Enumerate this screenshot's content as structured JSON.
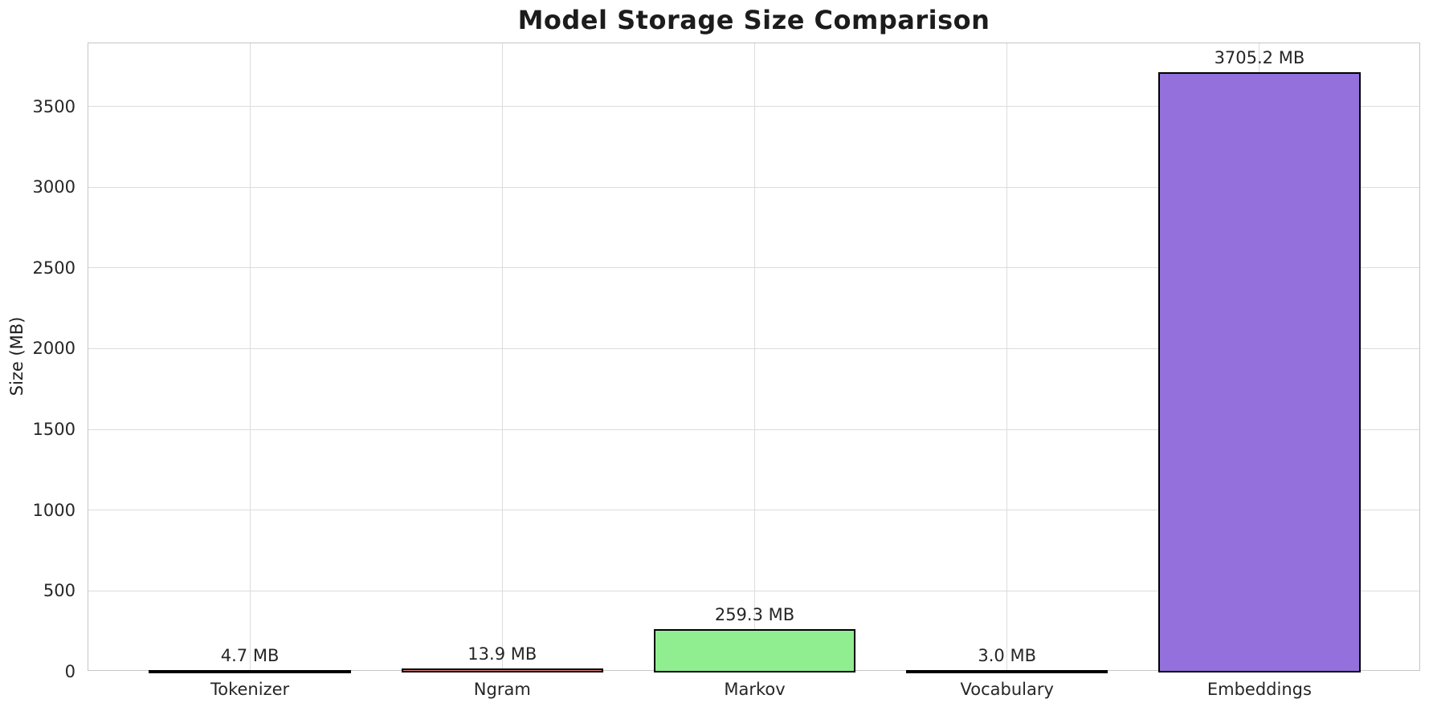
{
  "chart_data": {
    "type": "bar",
    "title": "Model Storage Size Comparison",
    "ylabel": "Size (MB)",
    "xlabel": "",
    "categories": [
      "Tokenizer",
      "Ngram",
      "Markov",
      "Vocabulary",
      "Embeddings"
    ],
    "values": [
      4.7,
      13.9,
      259.3,
      3.0,
      3705.2
    ],
    "value_labels": [
      "4.7 MB",
      "13.9 MB",
      "259.3 MB",
      "3.0 MB",
      "3705.2 MB"
    ],
    "bar_colors": [
      "#87CEEB",
      "#F08080",
      "#90EE90",
      "#FFD700",
      "#9370DB"
    ],
    "bar_edge_color": "#000000",
    "yticks": [
      0,
      500,
      1000,
      1500,
      2000,
      2500,
      3000,
      3500
    ],
    "ylim": [
      0,
      3890
    ],
    "xlim": [
      -0.64,
      4.64
    ],
    "bar_width": 0.8,
    "grid": true,
    "legend_position": "none",
    "background_color": "#ffffff",
    "grid_color": "#dcdcdc",
    "spine_color": "#c6c6c6"
  }
}
